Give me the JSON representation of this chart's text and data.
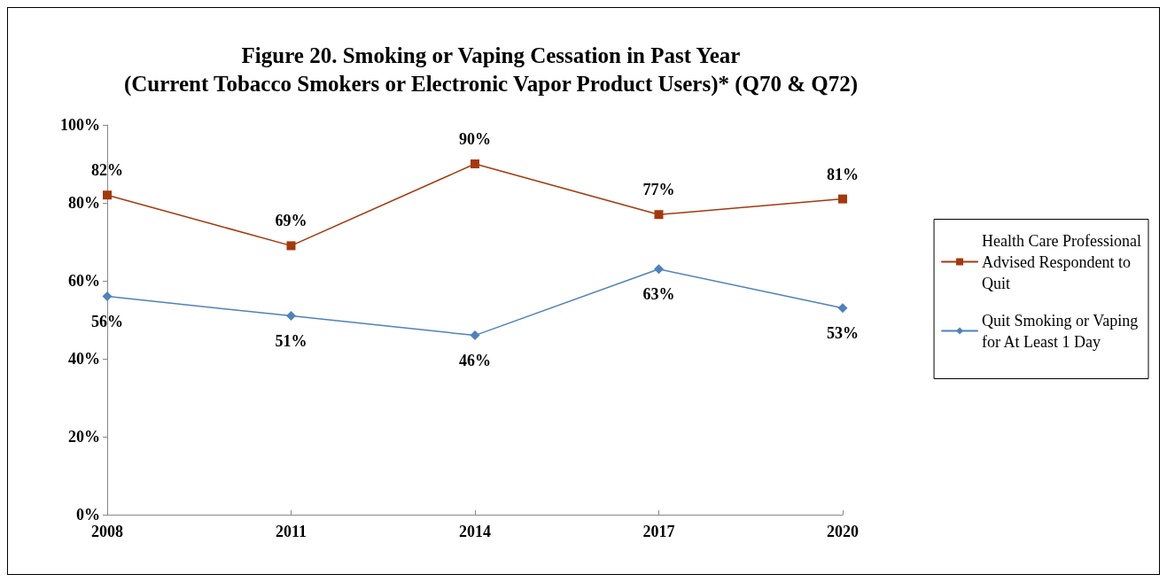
{
  "chart_data": {
    "type": "line",
    "title": "Figure 20. Smoking or Vaping Cessation in Past Year\n(Current Tobacco Smokers or Electronic Vapor Product Users)* (Q70 & Q72)",
    "categories": [
      "2008",
      "2011",
      "2014",
      "2017",
      "2020"
    ],
    "series": [
      {
        "name": "Health Care Professional\nAdvised Respondent to\nQuit",
        "color": "#a5380c",
        "marker": "square",
        "values": [
          82,
          69,
          90,
          77,
          81
        ],
        "value_labels": [
          "82%",
          "69%",
          "90%",
          "77%",
          "81%"
        ]
      },
      {
        "name": "Quit Smoking or Vaping\nfor At Least 1 Day",
        "color": "#4f81bd",
        "marker": "diamond",
        "values": [
          56,
          51,
          46,
          63,
          53
        ],
        "value_labels": [
          "56%",
          "51%",
          "46%",
          "63%",
          "53%"
        ]
      }
    ],
    "ylim": [
      0,
      100
    ],
    "yticks": [
      {
        "value": 0,
        "label": "0%"
      },
      {
        "value": 20,
        "label": "20%"
      },
      {
        "value": 40,
        "label": "40%"
      },
      {
        "value": 60,
        "label": "60%"
      },
      {
        "value": 80,
        "label": "80%"
      },
      {
        "value": 100,
        "label": "100%"
      }
    ],
    "grid": false,
    "legend": "right",
    "line_style": "solid"
  }
}
